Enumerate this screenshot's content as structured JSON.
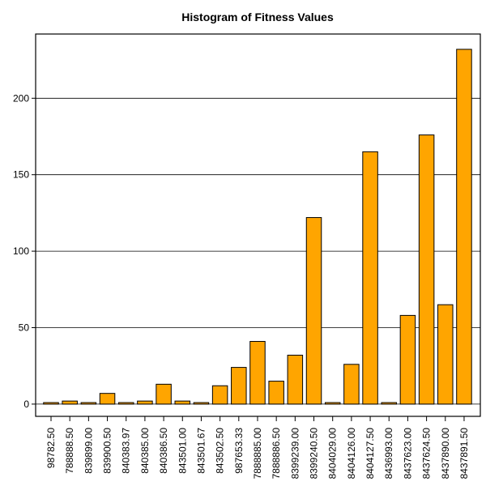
{
  "chart_data": {
    "type": "bar",
    "title": "Histogram of Fitness Values",
    "xlabel": "",
    "ylabel": "",
    "categories": [
      "98782.50",
      "788888.50",
      "839899.00",
      "839900.50",
      "840383.97",
      "840385.00",
      "840386.50",
      "843501.00",
      "843501.67",
      "843502.50",
      "987653.33",
      "7888885.00",
      "7888886.50",
      "8399239.00",
      "8399240.50",
      "8404029.00",
      "8404126.00",
      "8404127.50",
      "8436993.00",
      "8437623.00",
      "8437624.50",
      "8437890.00",
      "8437891.50"
    ],
    "values": [
      1,
      2,
      1,
      7,
      1,
      2,
      13,
      2,
      1,
      12,
      24,
      41,
      15,
      32,
      122,
      1,
      26,
      165,
      1,
      58,
      176,
      65,
      232
    ],
    "ylim": [
      -8,
      242
    ],
    "yticks": [
      0,
      50,
      100,
      150,
      200
    ],
    "ytick_labels": [
      "0",
      "50",
      "100",
      "150",
      "200"
    ],
    "grid": true,
    "bar_color": "#FFA500"
  }
}
